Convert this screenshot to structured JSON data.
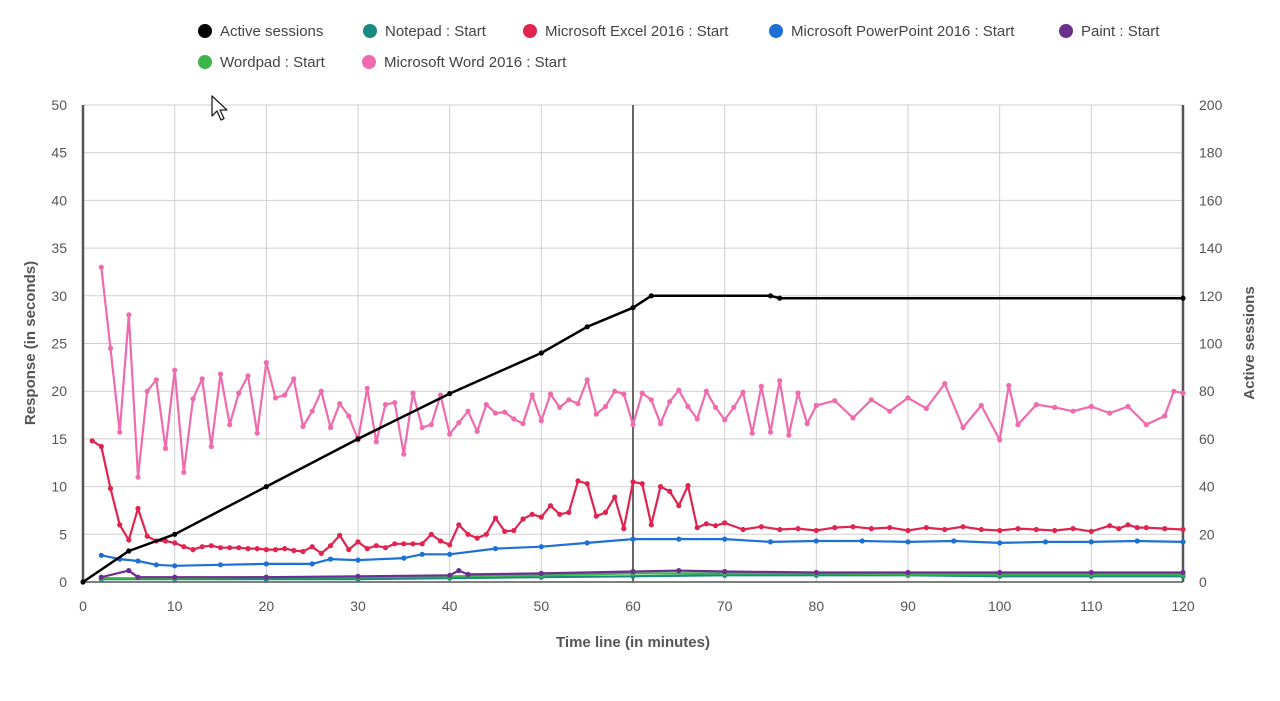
{
  "chart_data": {
    "type": "line",
    "xlabel": "Time line (in minutes)",
    "ylabel_left": "Response (in seconds)",
    "ylabel_right": "Active sessions",
    "xlim": [
      0,
      120
    ],
    "ylim_left": [
      0,
      50
    ],
    "ylim_right": [
      0,
      200
    ],
    "x_ticks": [
      0,
      10,
      20,
      30,
      40,
      50,
      60,
      70,
      80,
      90,
      100,
      110,
      120
    ],
    "y_left_ticks": [
      0,
      5,
      10,
      15,
      20,
      25,
      30,
      35,
      40,
      45,
      50
    ],
    "y_right_ticks": [
      0,
      20,
      40,
      60,
      80,
      100,
      120,
      140,
      160,
      180,
      200
    ],
    "grid": true,
    "legend_position": "top",
    "vertical_marker_x": 60,
    "series": [
      {
        "name": "Active sessions",
        "color": "#000000",
        "axis": "right",
        "x": [
          0,
          5,
          10,
          20,
          30,
          40,
          50,
          55,
          60,
          62,
          75,
          76,
          120
        ],
        "y": [
          0,
          13,
          20,
          40,
          60,
          79,
          96,
          107,
          115,
          120,
          120,
          119,
          119
        ]
      },
      {
        "name": "Notepad : Start",
        "color": "#1a8a82",
        "axis": "left",
        "x": [
          2,
          10,
          20,
          30,
          40,
          50,
          60,
          70,
          80,
          90,
          100,
          110,
          120
        ],
        "y": [
          0.3,
          0.3,
          0.3,
          0.3,
          0.4,
          0.5,
          0.6,
          0.7,
          0.7,
          0.7,
          0.6,
          0.6,
          0.6
        ]
      },
      {
        "name": "Microsoft Excel 2016 : Start",
        "color": "#e0244f",
        "axis": "left",
        "x": [
          1,
          2,
          3,
          4,
          5,
          6,
          7,
          8,
          9,
          10,
          11,
          12,
          13,
          14,
          15,
          16,
          17,
          18,
          19,
          20,
          21,
          22,
          23,
          24,
          25,
          26,
          27,
          28,
          29,
          30,
          31,
          32,
          33,
          34,
          35,
          36,
          37,
          38,
          39,
          40,
          41,
          42,
          43,
          44,
          45,
          46,
          47,
          48,
          49,
          50,
          51,
          52,
          53,
          54,
          55,
          56,
          57,
          58,
          59,
          60,
          61,
          62,
          63,
          64,
          65,
          66,
          67,
          68,
          69,
          70,
          72,
          74,
          76,
          78,
          80,
          82,
          84,
          86,
          88,
          90,
          92,
          94,
          96,
          98,
          100,
          102,
          104,
          106,
          108,
          110,
          112,
          113,
          114,
          115,
          116,
          118,
          120
        ],
        "y": [
          14.8,
          14.2,
          9.8,
          6.0,
          4.4,
          7.7,
          4.8,
          4.3,
          4.3,
          4.1,
          3.7,
          3.4,
          3.7,
          3.8,
          3.6,
          3.6,
          3.6,
          3.5,
          3.5,
          3.4,
          3.4,
          3.5,
          3.3,
          3.2,
          3.7,
          3.0,
          3.8,
          4.9,
          3.4,
          4.2,
          3.5,
          3.8,
          3.6,
          4.0,
          4.0,
          4.0,
          4.0,
          5.0,
          4.3,
          3.9,
          6.0,
          5.0,
          4.6,
          5.0,
          6.7,
          5.3,
          5.4,
          6.6,
          7.1,
          6.8,
          8.0,
          7.1,
          7.3,
          10.6,
          10.3,
          6.9,
          7.3,
          8.9,
          5.6,
          10.5,
          10.3,
          6.0,
          10.0,
          9.5,
          8.0,
          10.1,
          5.7,
          6.1,
          5.9,
          6.2,
          5.5,
          5.8,
          5.5,
          5.6,
          5.4,
          5.7,
          5.8,
          5.6,
          5.7,
          5.4,
          5.7,
          5.5,
          5.8,
          5.5,
          5.4,
          5.6,
          5.5,
          5.4,
          5.6,
          5.3,
          5.9,
          5.6,
          6.0,
          5.7,
          5.7,
          5.6,
          5.5
        ]
      },
      {
        "name": "Microsoft PowerPoint 2016 : Start",
        "color": "#1e6fd6",
        "axis": "left",
        "x": [
          2,
          4,
          6,
          8,
          10,
          15,
          20,
          25,
          27,
          30,
          35,
          37,
          40,
          45,
          50,
          55,
          60,
          65,
          70,
          75,
          80,
          85,
          90,
          95,
          100,
          105,
          110,
          115,
          120
        ],
        "y": [
          2.8,
          2.4,
          2.2,
          1.8,
          1.7,
          1.8,
          1.9,
          1.9,
          2.4,
          2.3,
          2.5,
          2.9,
          2.9,
          3.5,
          3.7,
          4.1,
          4.5,
          4.5,
          4.5,
          4.2,
          4.3,
          4.3,
          4.2,
          4.3,
          4.1,
          4.2,
          4.2,
          4.3,
          4.2
        ]
      },
      {
        "name": "Paint : Start",
        "color": "#6b2f8f",
        "axis": "left",
        "x": [
          2,
          5,
          6,
          10,
          20,
          30,
          40,
          41,
          42,
          50,
          60,
          65,
          70,
          80,
          90,
          100,
          110,
          120
        ],
        "y": [
          0.5,
          1.2,
          0.5,
          0.5,
          0.5,
          0.6,
          0.7,
          1.2,
          0.8,
          0.9,
          1.1,
          1.2,
          1.1,
          1.0,
          1.0,
          1.0,
          1.0,
          1.0
        ]
      },
      {
        "name": "Wordpad : Start",
        "color": "#3db54a",
        "axis": "left",
        "x": [
          2,
          10,
          20,
          30,
          40,
          50,
          60,
          70,
          80,
          90,
          100,
          110,
          120
        ],
        "y": [
          0.4,
          0.4,
          0.5,
          0.5,
          0.6,
          0.7,
          0.9,
          0.9,
          0.9,
          0.8,
          0.8,
          0.8,
          0.8
        ]
      },
      {
        "name": "Microsoft Word 2016 : Start",
        "color": "#f06aae",
        "axis": "left",
        "x": [
          2,
          3,
          4,
          5,
          6,
          7,
          8,
          9,
          10,
          11,
          12,
          13,
          14,
          15,
          16,
          17,
          18,
          19,
          20,
          21,
          22,
          23,
          24,
          25,
          26,
          27,
          28,
          29,
          30,
          31,
          32,
          33,
          34,
          35,
          36,
          37,
          38,
          39,
          40,
          41,
          42,
          43,
          44,
          45,
          46,
          47,
          48,
          49,
          50,
          51,
          52,
          53,
          54,
          55,
          56,
          57,
          58,
          59,
          60,
          61,
          62,
          63,
          64,
          65,
          66,
          67,
          68,
          69,
          70,
          71,
          72,
          73,
          74,
          75,
          76,
          77,
          78,
          79,
          80,
          82,
          84,
          86,
          88,
          90,
          92,
          94,
          96,
          98,
          100,
          101,
          102,
          104,
          106,
          108,
          110,
          112,
          114,
          116,
          118,
          119,
          120
        ],
        "y": [
          33,
          24.5,
          15.7,
          28,
          11,
          20,
          21.2,
          14,
          22.2,
          11.5,
          19.2,
          21.3,
          14.2,
          21.8,
          16.5,
          19.8,
          21.6,
          15.6,
          23,
          19.3,
          19.6,
          21.3,
          16.3,
          17.9,
          20,
          16.2,
          18.7,
          17.4,
          14.9,
          20.3,
          14.7,
          18.6,
          18.8,
          13.4,
          19.8,
          16.2,
          16.5,
          19.6,
          15.5,
          16.7,
          17.9,
          15.8,
          18.6,
          17.7,
          17.8,
          17.1,
          16.6,
          19.6,
          16.9,
          19.7,
          18.3,
          19.1,
          18.7,
          21.2,
          17.6,
          18.4,
          20,
          19.7,
          16.5,
          19.8,
          19.1,
          16.6,
          18.9,
          20.1,
          18.4,
          17.1,
          20,
          18.3,
          17,
          18.3,
          19.9,
          15.6,
          20.5,
          15.7,
          21.1,
          15.4,
          19.8,
          16.6,
          18.5,
          19,
          17.2,
          19.1,
          17.9,
          19.3,
          18.2,
          20.8,
          16.2,
          18.5,
          14.9,
          20.6,
          16.5,
          18.6,
          18.3,
          17.9,
          18.4,
          17.7,
          18.4,
          16.5,
          17.4,
          20,
          19.8
        ]
      }
    ]
  }
}
